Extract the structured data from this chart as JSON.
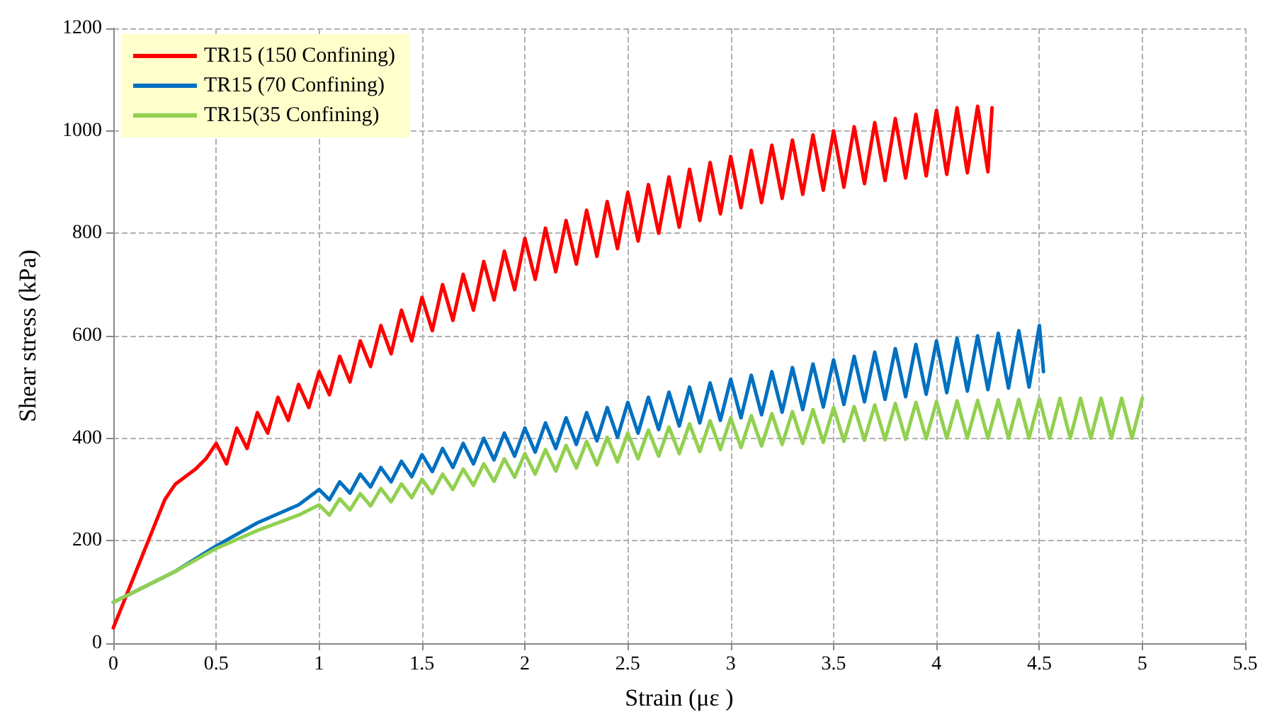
{
  "chart_data": {
    "type": "line",
    "xlabel": "Strain (με )",
    "ylabel": "Shear stress (kPa)",
    "xlim": [
      0,
      5.5
    ],
    "xticks": [
      0,
      0.5,
      1,
      1.5,
      2,
      2.5,
      3,
      3.5,
      4,
      4.5,
      5,
      5.5
    ],
    "ylim": [
      0,
      1200
    ],
    "yticks": [
      0,
      200,
      400,
      600,
      800,
      1000,
      1200
    ],
    "grid": true,
    "legend": "top left",
    "marker": "none",
    "line_style": "solid",
    "series": [
      {
        "name": "TR15 (150 Confining)",
        "color": "#ff0000",
        "x": [
          0,
          0.05,
          0.1,
          0.15,
          0.2,
          0.25,
          0.3,
          0.4,
          0.45,
          0.5,
          0.55,
          0.6,
          0.65,
          0.7,
          0.75,
          0.8,
          0.85,
          0.9,
          0.95,
          1.0,
          1.05,
          1.1,
          1.15,
          1.2,
          1.25,
          1.3,
          1.35,
          1.4,
          1.45,
          1.5,
          1.55,
          1.6,
          1.65,
          1.7,
          1.75,
          1.8,
          1.85,
          1.9,
          1.95,
          2.0,
          2.05,
          2.1,
          2.15,
          2.2,
          2.25,
          2.3,
          2.35,
          2.4,
          2.45,
          2.5,
          2.55,
          2.6,
          2.65,
          2.7,
          2.75,
          2.8,
          2.85,
          2.9,
          2.95,
          3.0,
          3.05,
          3.1,
          3.15,
          3.2,
          3.25,
          3.3,
          3.35,
          3.4,
          3.45,
          3.5,
          3.55,
          3.6,
          3.65,
          3.7,
          3.75,
          3.8,
          3.85,
          3.9,
          3.95,
          4.0,
          4.05,
          4.1,
          4.15,
          4.2,
          4.25,
          4.27
        ],
        "values": [
          30,
          80,
          130,
          180,
          230,
          280,
          310,
          340,
          360,
          390,
          350,
          420,
          380,
          450,
          410,
          480,
          435,
          505,
          460,
          530,
          485,
          560,
          510,
          590,
          540,
          620,
          565,
          650,
          590,
          675,
          610,
          700,
          630,
          720,
          650,
          745,
          670,
          765,
          690,
          790,
          710,
          810,
          725,
          825,
          740,
          845,
          755,
          862,
          770,
          880,
          785,
          895,
          800,
          910,
          812,
          925,
          825,
          938,
          838,
          950,
          850,
          962,
          860,
          972,
          868,
          982,
          876,
          992,
          884,
          1000,
          890,
          1008,
          897,
          1016,
          903,
          1024,
          908,
          1032,
          912,
          1040,
          915,
          1045,
          918,
          1048,
          920,
          1045
        ]
      },
      {
        "name": "TR15 (70 Confining)",
        "color": "#0070c0",
        "x": [
          0,
          0.1,
          0.3,
          0.5,
          0.7,
          0.9,
          1.0,
          1.05,
          1.1,
          1.15,
          1.2,
          1.25,
          1.3,
          1.35,
          1.4,
          1.45,
          1.5,
          1.55,
          1.6,
          1.65,
          1.7,
          1.75,
          1.8,
          1.85,
          1.9,
          1.95,
          2.0,
          2.05,
          2.1,
          2.15,
          2.2,
          2.25,
          2.3,
          2.35,
          2.4,
          2.45,
          2.5,
          2.55,
          2.6,
          2.65,
          2.7,
          2.75,
          2.8,
          2.85,
          2.9,
          2.95,
          3.0,
          3.05,
          3.1,
          3.15,
          3.2,
          3.25,
          3.3,
          3.35,
          3.4,
          3.45,
          3.5,
          3.55,
          3.6,
          3.65,
          3.7,
          3.75,
          3.8,
          3.85,
          3.9,
          3.95,
          4.0,
          4.05,
          4.1,
          4.15,
          4.2,
          4.25,
          4.3,
          4.35,
          4.4,
          4.45,
          4.5,
          4.52
        ],
        "values": [
          80,
          100,
          140,
          190,
          235,
          270,
          300,
          280,
          315,
          293,
          330,
          305,
          343,
          315,
          355,
          325,
          368,
          335,
          380,
          343,
          390,
          350,
          400,
          358,
          410,
          365,
          420,
          373,
          430,
          380,
          440,
          388,
          450,
          395,
          460,
          402,
          470,
          410,
          480,
          417,
          490,
          424,
          500,
          430,
          508,
          435,
          515,
          440,
          523,
          446,
          530,
          451,
          538,
          456,
          545,
          461,
          553,
          466,
          560,
          471,
          568,
          476,
          575,
          481,
          583,
          486,
          590,
          489,
          595,
          492,
          600,
          495,
          605,
          498,
          610,
          500,
          620,
          530
        ]
      },
      {
        "name": "TR15(35 Confining)",
        "color": "#92d050",
        "x": [
          0,
          0.1,
          0.3,
          0.5,
          0.7,
          0.9,
          1.0,
          1.05,
          1.1,
          1.15,
          1.2,
          1.25,
          1.3,
          1.35,
          1.4,
          1.45,
          1.5,
          1.55,
          1.6,
          1.65,
          1.7,
          1.75,
          1.8,
          1.85,
          1.9,
          1.95,
          2.0,
          2.05,
          2.1,
          2.15,
          2.2,
          2.25,
          2.3,
          2.35,
          2.4,
          2.45,
          2.5,
          2.55,
          2.6,
          2.65,
          2.7,
          2.75,
          2.8,
          2.85,
          2.9,
          2.95,
          3.0,
          3.05,
          3.1,
          3.15,
          3.2,
          3.25,
          3.3,
          3.35,
          3.4,
          3.45,
          3.5,
          3.55,
          3.6,
          3.65,
          3.7,
          3.75,
          3.8,
          3.85,
          3.9,
          3.95,
          4.0,
          4.05,
          4.1,
          4.15,
          4.2,
          4.25,
          4.3,
          4.35,
          4.4,
          4.45,
          4.5,
          4.55,
          4.6,
          4.65,
          4.7,
          4.75,
          4.8,
          4.85,
          4.9,
          4.95,
          5.0
        ],
        "values": [
          80,
          100,
          140,
          185,
          220,
          250,
          270,
          250,
          282,
          260,
          292,
          268,
          302,
          276,
          311,
          284,
          320,
          292,
          330,
          300,
          340,
          308,
          350,
          316,
          360,
          324,
          370,
          330,
          378,
          336,
          386,
          342,
          394,
          348,
          402,
          354,
          410,
          360,
          416,
          365,
          422,
          370,
          428,
          374,
          434,
          378,
          440,
          382,
          444,
          385,
          448,
          388,
          452,
          390,
          456,
          392,
          460,
          394,
          462,
          396,
          465,
          397,
          468,
          398,
          470,
          399,
          472,
          400,
          473,
          400,
          474,
          400,
          475,
          400,
          476,
          400,
          477,
          400,
          478,
          400,
          478,
          400,
          478,
          400,
          478,
          400,
          478
        ]
      }
    ]
  }
}
